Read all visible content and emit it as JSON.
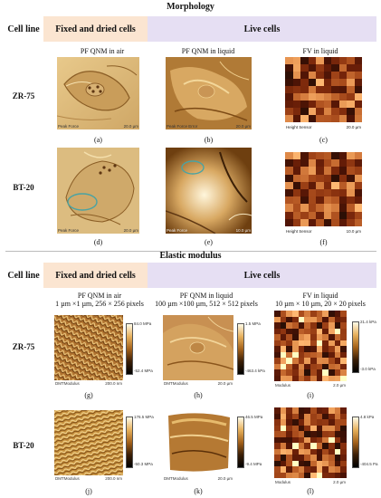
{
  "morphology": {
    "title": "Morphology",
    "cell_line_header": "Cell line",
    "fixed_header": "Fixed and dried cells",
    "live_header": "Live cells",
    "columns": [
      "PF QNM in air",
      "PF QNM in liquid",
      "FV in liquid"
    ],
    "rows": [
      "ZR-75",
      "BT-20"
    ],
    "panels": [
      {
        "caption": "(a)",
        "channel": "Peak Force",
        "scale": "20.0 µm"
      },
      {
        "caption": "(b)",
        "channel": "Peak Force Error",
        "scale": "20.0 µm"
      },
      {
        "caption": "(c)",
        "channel": "Height Sensor",
        "scale": "20.0 µm"
      },
      {
        "caption": "(d)",
        "channel": "Peak Force",
        "scale": "20.0 µm"
      },
      {
        "caption": "(e)",
        "channel": "Peak Force",
        "scale": "10.0 µm"
      },
      {
        "caption": "(f)",
        "channel": "Height Sensor",
        "scale": "10.0 µm"
      }
    ]
  },
  "elastic": {
    "title": "Elastic modulus",
    "cell_line_header": "Cell line",
    "fixed_header": "Fixed and dried cells",
    "live_header": "Live cells",
    "columns": [
      {
        "line1": "PF QNM in air",
        "line2": "1 µm ×1 µm, 256 × 256 pixels"
      },
      {
        "line1": "PF QNM in liquid",
        "line2": "100 µm ×100 µm, 512 × 512 pixels"
      },
      {
        "line1": "FV in liquid",
        "line2": "10 µm × 10 µm, 20 × 20 pixels"
      }
    ],
    "rows": [
      "ZR-75",
      "BT-20"
    ],
    "panels": [
      {
        "caption": "(g)",
        "channel": "DMTModulus",
        "scale": "200.0 nm",
        "cb_max": "84.0 MPa",
        "cb_min": "-52.4 MPa"
      },
      {
        "caption": "(h)",
        "channel": "DMTModulus",
        "scale": "20.0 µm",
        "cb_max": "1.5 MPa",
        "cb_min": "-463.4 kPa"
      },
      {
        "caption": "(i)",
        "channel": "Modulus",
        "scale": "2.0 µm",
        "cb_max": "21.4 kPa",
        "cb_min": "-3.0 kPa"
      },
      {
        "caption": "(j)",
        "channel": "DMTModulus",
        "scale": "200.0 nm",
        "cb_max": "176.5 MPa",
        "cb_min": "-50.3 MPa"
      },
      {
        "caption": "(k)",
        "channel": "DMTModulus",
        "scale": "20.0 µm",
        "cb_max": "46.5 MPa",
        "cb_min": "-9.4 MPa"
      },
      {
        "caption": "(l)",
        "channel": "Modulus",
        "scale": "2.0 µm",
        "cb_max": "4.8 kPa",
        "cb_min": "-404.5 Pa"
      }
    ]
  },
  "colors": {
    "header_peach": "#fbe5d1",
    "header_lavender": "#e6dff3",
    "afm_light": "#f0d28d",
    "afm_dark": "#3b1f07"
  }
}
